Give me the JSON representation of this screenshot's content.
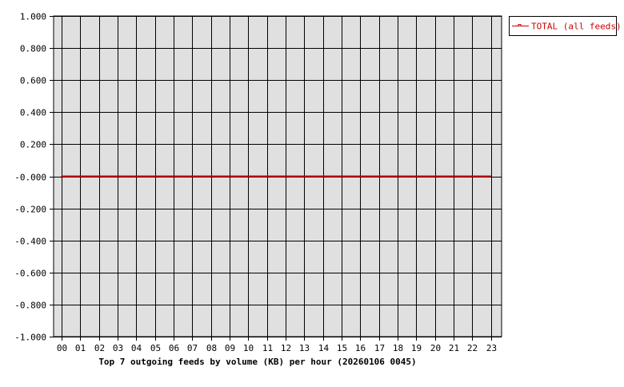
{
  "chart_data": {
    "type": "line",
    "title": "",
    "xlabel": "Top 7 outgoing feeds by volume (KB) per hour (20260106 0045)",
    "ylabel": "",
    "categories": [
      "00",
      "01",
      "02",
      "03",
      "04",
      "05",
      "06",
      "07",
      "08",
      "09",
      "10",
      "11",
      "12",
      "13",
      "14",
      "15",
      "16",
      "17",
      "18",
      "19",
      "20",
      "21",
      "22",
      "23"
    ],
    "ylim": [
      -1.0,
      1.0
    ],
    "yticks": [
      "1.000",
      "0.800",
      "0.600",
      "0.400",
      "0.200",
      "-0.000",
      "-0.200",
      "-0.400",
      "-0.600",
      "-0.800",
      "-1.000"
    ],
    "grid": true,
    "legend_placement": "top-right outside",
    "series": [
      {
        "name": "TOTAL (all feeds)",
        "color": "#cc0000",
        "values": [
          0,
          0,
          0,
          0,
          0,
          0,
          0,
          0,
          0,
          0,
          0,
          0,
          0,
          0,
          0,
          0,
          0,
          0,
          0,
          0,
          0,
          0,
          0,
          0
        ]
      }
    ],
    "colors": {
      "plot_background": "#e0e0e0",
      "grid": "#000000"
    }
  }
}
